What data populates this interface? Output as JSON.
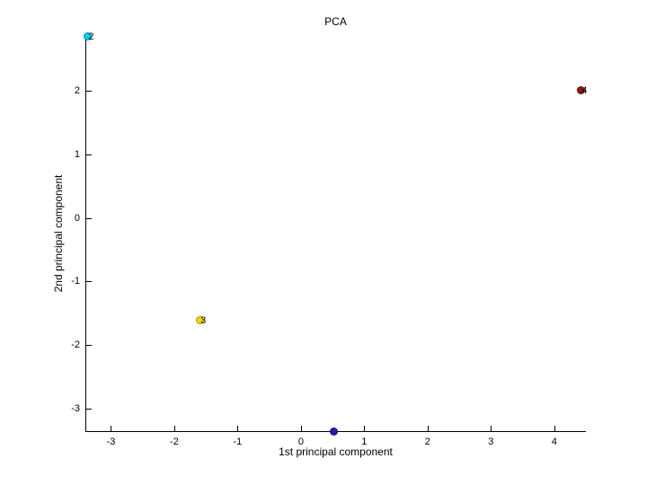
{
  "figure": {
    "background_color": "#FFFFFF",
    "axis_color": "#000000",
    "text_color": "#000000"
  },
  "chart_data": {
    "type": "scatter",
    "title": "PCA",
    "xlabel": "1st principal component",
    "ylabel": "2nd principal component",
    "xlim": [
      -3.39,
      4.5
    ],
    "ylim": [
      -3.35,
      2.86
    ],
    "xticks": [
      -3,
      -2,
      -1,
      0,
      1,
      2,
      3,
      4
    ],
    "yticks": [
      -3,
      -2,
      -1,
      0,
      1,
      2
    ],
    "grid": false,
    "legend": "none",
    "box": "left-and-bottom-spines-only",
    "points": [
      {
        "x": 0.52,
        "y": -3.35,
        "color": "#1F1FA2",
        "label": ""
      },
      {
        "x": -3.37,
        "y": 2.85,
        "color": "#00CCEE",
        "label": "2"
      },
      {
        "x": -1.6,
        "y": -1.61,
        "color": "#FFD400",
        "label": "3"
      },
      {
        "x": 4.42,
        "y": 2.0,
        "color": "#8C1616",
        "label": "4"
      }
    ]
  }
}
